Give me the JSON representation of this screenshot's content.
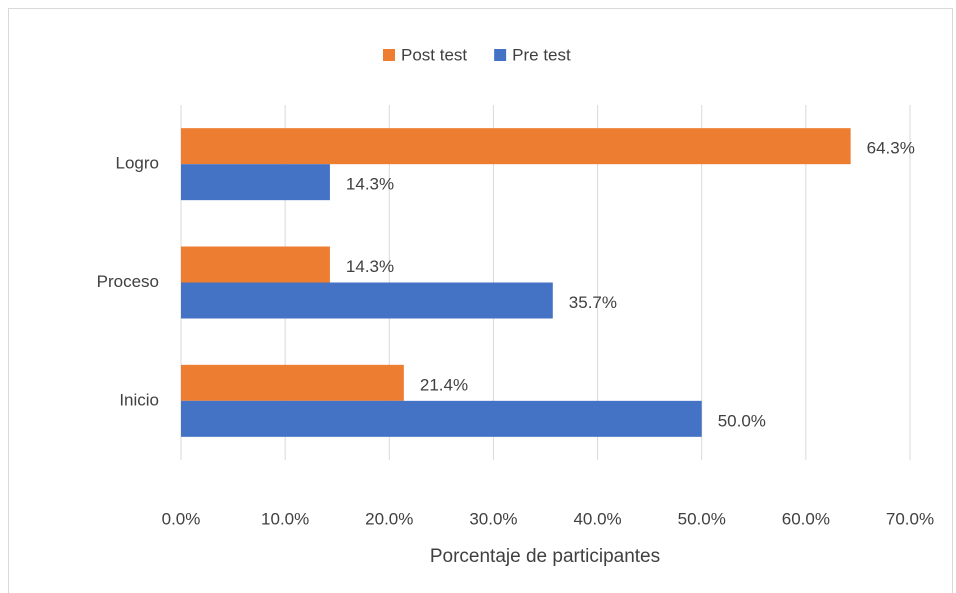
{
  "chart_data": {
    "type": "bar",
    "orientation": "horizontal",
    "x_label": "Porcentaje de participantes",
    "categories": [
      "Logro",
      "Proceso",
      "Inicio"
    ],
    "series": [
      {
        "name": "Post test",
        "color": "#ed7d31",
        "values": [
          64.3,
          14.3,
          21.4
        ],
        "value_labels": [
          "64.3%",
          "14.3%",
          "21.4%"
        ]
      },
      {
        "name": "Pre test",
        "color": "#4472c4",
        "values": [
          14.3,
          35.7,
          50.0
        ],
        "value_labels": [
          "14.3%",
          "35.7%",
          "50.0%"
        ]
      }
    ],
    "xlim": [
      0,
      70
    ],
    "xticks": [
      {
        "value": 0,
        "label": "0.0%"
      },
      {
        "value": 10,
        "label": "10.0%"
      },
      {
        "value": 20,
        "label": "20.0%"
      },
      {
        "value": 30,
        "label": "30.0%"
      },
      {
        "value": 40,
        "label": "40.0%"
      },
      {
        "value": 50,
        "label": "50.0%"
      },
      {
        "value": 60,
        "label": "60.0%"
      },
      {
        "value": 70,
        "label": "70.0%"
      }
    ],
    "grid": true,
    "legend": "top"
  }
}
